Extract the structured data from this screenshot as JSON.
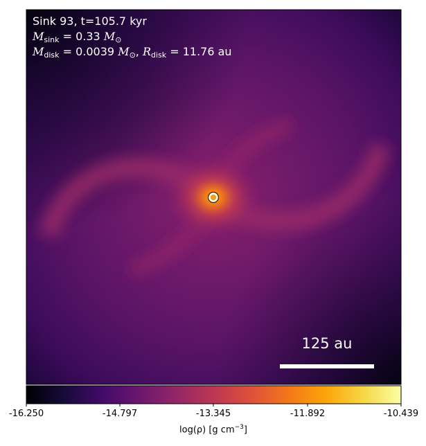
{
  "annotation": {
    "line1": "Sink 93, t=105.7 kyr",
    "sink_mass_symbol": "M",
    "sink_mass_sub": "sink",
    "sink_mass_value": " = 0.33 ",
    "solar_symbol": "M",
    "solar_sub": "⊙",
    "disk_mass_symbol": "M",
    "disk_mass_sub": "disk",
    "disk_mass_value": " = 0.0039 ",
    "disk_radius_symbol": "R",
    "disk_radius_sub": "disk",
    "disk_radius_value": " = 11.76 au",
    "separator": ", "
  },
  "scale_bar": {
    "label": "125 au"
  },
  "colorbar": {
    "colormap": "inferno",
    "ticks": [
      "-16.250",
      "-14.797",
      "-13.345",
      "-11.892",
      "-10.439"
    ],
    "min": -16.25,
    "max": -10.439,
    "label_prefix": "log(ρ) [g cm",
    "label_exp": "−3",
    "label_suffix": "]"
  },
  "sink": {
    "ring_color": "#ffffff",
    "edge_color": "#3a2a00"
  }
}
